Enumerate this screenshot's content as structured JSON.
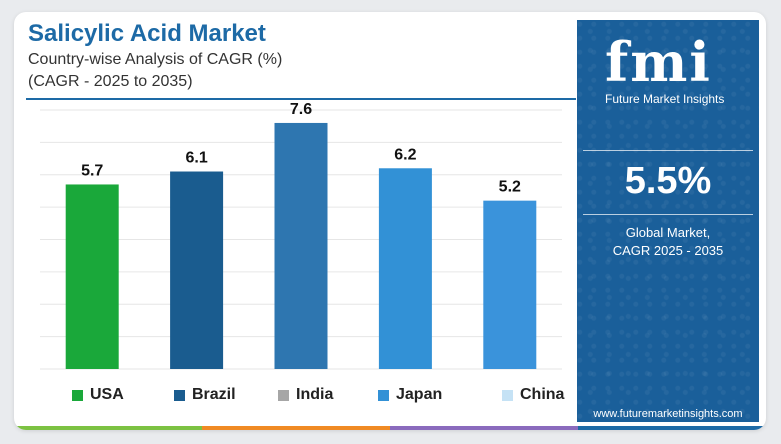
{
  "header": {
    "title": "Salicylic Acid Market",
    "subtitle_line1": "Country-wise Analysis of CAGR (%)",
    "subtitle_line2": "(CAGR - 2025 to 2035)"
  },
  "sidebar": {
    "logo_text": "fmi",
    "logo_sub": "Future Market Insights",
    "global_value": "5.5%",
    "global_label_line1": "Global Market,",
    "global_label_line2": "CAGR 2025 - 2035",
    "url": "www.futuremarketinsights.com"
  },
  "legend": [
    {
      "label": "USA",
      "color": "#1aa83a"
    },
    {
      "label": "Brazil",
      "color": "#1a5c8f"
    },
    {
      "label": "India",
      "color": "#a6a6a6"
    },
    {
      "label": "Japan",
      "color": "#3291d6"
    },
    {
      "label": "China",
      "color": "#c5e2f5"
    }
  ],
  "colors": {
    "title": "#1d6aa6",
    "panel": "#1a5f9a",
    "bottom_strip": [
      "#7cc242",
      "#f08a24",
      "#8a6bbd",
      "#1d6aa6"
    ]
  },
  "chart_data": {
    "type": "bar",
    "categories": [
      "USA",
      "Brazil",
      "India",
      "Japan",
      "China"
    ],
    "values": [
      5.7,
      6.1,
      7.6,
      6.2,
      5.2
    ],
    "bar_colors": [
      "#1aa83a",
      "#1a5c8f",
      "#2e76b0",
      "#3291d6",
      "#3a93db"
    ],
    "data_labels": [
      "5.7",
      "6.1",
      "7.6",
      "6.2",
      "5.2"
    ],
    "ylim": [
      0,
      8
    ],
    "grid": true,
    "legend_position": "bottom"
  }
}
